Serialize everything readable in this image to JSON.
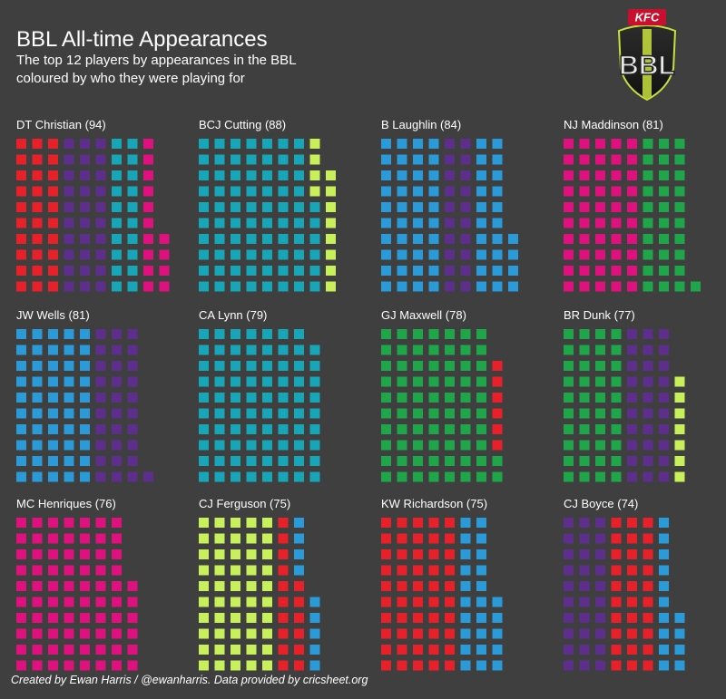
{
  "header": {
    "title": "BBL All-time Appearances",
    "subtitle_line1": "The top 12 players by appearances in the BBL",
    "subtitle_line2": "coloured by who they were playing for"
  },
  "logo": {
    "sponsor": "KFC",
    "wordmark": "BBL"
  },
  "footer": {
    "credit": "Created by Ewan Harris / @ewanharris. Data provided by cricsheet.org"
  },
  "colors": {
    "background": "#3f3f3f",
    "red": "#e8202a",
    "purple": "#5d2e8c",
    "teal": "#17a6b8",
    "pink": "#e0117f",
    "lime": "#c8f05a",
    "blue": "#2a9ad8",
    "green": "#1fa64a"
  },
  "chart_data": {
    "type": "waffle",
    "columns_per_panel": 10,
    "panels": [
      {
        "label": "DT Christian (94)",
        "player": "DT Christian",
        "total": 94,
        "segments": [
          {
            "team": "red",
            "count": 30
          },
          {
            "team": "purple",
            "count": 30
          },
          {
            "team": "teal",
            "count": 20
          },
          {
            "team": "pink",
            "count": 14
          }
        ]
      },
      {
        "label": "BCJ Cutting (88)",
        "player": "BCJ Cutting",
        "total": 88,
        "segments": [
          {
            "team": "teal",
            "count": 76
          },
          {
            "team": "lime",
            "count": 12
          }
        ]
      },
      {
        "label": "B Laughlin (84)",
        "player": "B Laughlin",
        "total": 84,
        "segments": [
          {
            "team": "blue",
            "count": 40
          },
          {
            "team": "purple",
            "count": 20
          },
          {
            "team": "blue",
            "count": 24
          }
        ]
      },
      {
        "label": "NJ Maddinson (81)",
        "player": "NJ Maddinson",
        "total": 81,
        "segments": [
          {
            "team": "pink",
            "count": 50
          },
          {
            "team": "green",
            "count": 31
          }
        ]
      },
      {
        "label": "JW Wells (81)",
        "player": "JW Wells",
        "total": 81,
        "segments": [
          {
            "team": "blue",
            "count": 50
          },
          {
            "team": "purple",
            "count": 31
          }
        ]
      },
      {
        "label": "CA Lynn (79)",
        "player": "CA Lynn",
        "total": 79,
        "segments": [
          {
            "team": "teal",
            "count": 79
          }
        ]
      },
      {
        "label": "GJ Maxwell (78)",
        "player": "GJ Maxwell",
        "total": 78,
        "segments": [
          {
            "team": "green",
            "count": 72
          },
          {
            "team": "red",
            "count": 6
          }
        ]
      },
      {
        "label": "BR Dunk (77)",
        "player": "BR Dunk",
        "total": 77,
        "segments": [
          {
            "team": "green",
            "count": 40
          },
          {
            "team": "purple",
            "count": 30
          },
          {
            "team": "lime",
            "count": 7
          }
        ]
      },
      {
        "label": "MC Henriques (76)",
        "player": "MC Henriques",
        "total": 76,
        "segments": [
          {
            "team": "pink",
            "count": 76
          }
        ]
      },
      {
        "label": "CJ Ferguson (75)",
        "player": "CJ Ferguson",
        "total": 75,
        "segments": [
          {
            "team": "lime",
            "count": 50
          },
          {
            "team": "red",
            "count": 16
          },
          {
            "team": "blue",
            "count": 9
          }
        ]
      },
      {
        "label": "KW Richardson (75)",
        "player": "KW Richardson",
        "total": 75,
        "segments": [
          {
            "team": "red",
            "count": 50
          },
          {
            "team": "blue",
            "count": 25
          }
        ]
      },
      {
        "label": "CJ Boyce (74)",
        "player": "CJ Boyce",
        "total": 74,
        "segments": [
          {
            "team": "purple",
            "count": 30
          },
          {
            "team": "red",
            "count": 30
          },
          {
            "team": "blue",
            "count": 14
          }
        ]
      }
    ]
  }
}
